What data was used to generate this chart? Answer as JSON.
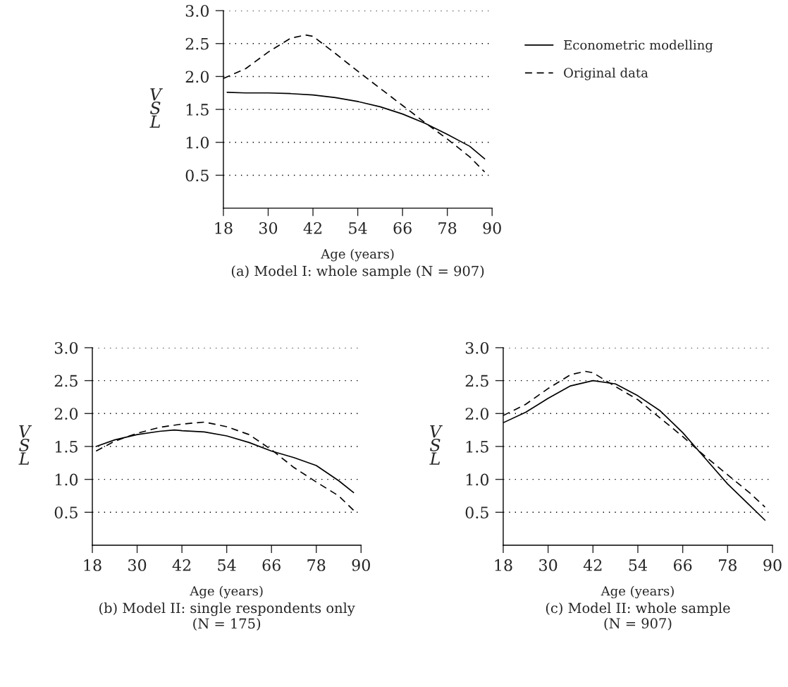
{
  "chart_data": [
    {
      "type": "line",
      "title": "(a) Model I: whole sample (N = 907)",
      "xlabel": "Age (years)",
      "ylabel": "V\nS\nL",
      "xlim": [
        18,
        90
      ],
      "xticks": [
        18,
        30,
        42,
        54,
        66,
        78,
        90
      ],
      "ylim": [
        0,
        3
      ],
      "yticks": [
        0.5,
        {
          "value": 1,
          "label": "1.0"
        },
        1.5,
        {
          "value": 2,
          "label": "2.0"
        },
        2.5,
        {
          "value": 3,
          "label": "3.0"
        }
      ],
      "grid": "y",
      "legend": "right",
      "series": [
        {
          "name": "Econometric modelling",
          "color": "#000000",
          "line_style": "solid",
          "x": [
            19,
            24,
            30,
            36,
            42,
            48,
            54,
            60,
            66,
            72,
            78,
            84,
            88
          ],
          "values": [
            1.76,
            1.75,
            1.75,
            1.74,
            1.72,
            1.68,
            1.62,
            1.54,
            1.43,
            1.29,
            1.12,
            0.94,
            0.75
          ]
        },
        {
          "name": "Original data",
          "color": "#000000",
          "line_style": "dashed",
          "x": [
            18,
            24,
            30,
            36,
            40,
            42,
            48,
            54,
            60,
            66,
            72,
            78,
            84,
            88
          ],
          "values": [
            1.97,
            2.12,
            2.37,
            2.58,
            2.63,
            2.61,
            2.35,
            2.08,
            1.82,
            1.56,
            1.3,
            1.05,
            0.78,
            0.55
          ]
        }
      ]
    },
    {
      "type": "line",
      "title": "(b) Model II: single respondents only\n(N = 175)",
      "xlabel": "Age (years)",
      "ylabel": "V\nS\nL",
      "xlim": [
        18,
        90
      ],
      "xticks": [
        18,
        30,
        42,
        54,
        66,
        78,
        90
      ],
      "ylim": [
        0,
        3
      ],
      "yticks": [
        0.5,
        {
          "value": 1,
          "label": "1.0"
        },
        1.5,
        {
          "value": 2,
          "label": "2.0"
        },
        2.5,
        {
          "value": 3,
          "label": "3.0"
        }
      ],
      "grid": "y",
      "series": [
        {
          "color": "#000000",
          "line_style": "solid",
          "x": [
            19,
            24,
            30,
            36,
            40,
            42,
            48,
            54,
            60,
            66,
            72,
            78,
            84,
            88
          ],
          "values": [
            1.5,
            1.6,
            1.68,
            1.73,
            1.75,
            1.74,
            1.72,
            1.66,
            1.56,
            1.43,
            1.33,
            1.21,
            0.98,
            0.8
          ]
        },
        {
          "color": "#000000",
          "line_style": "dashed",
          "x": [
            19,
            24,
            30,
            36,
            42,
            48,
            54,
            60,
            66,
            72,
            78,
            84,
            88
          ],
          "values": [
            1.43,
            1.58,
            1.7,
            1.79,
            1.84,
            1.87,
            1.8,
            1.68,
            1.45,
            1.18,
            0.96,
            0.75,
            0.53
          ]
        }
      ]
    },
    {
      "type": "line",
      "title": "(c) Model II: whole sample\n(N = 907)",
      "xlabel": "Age (years)",
      "ylabel": "V\nS\nL",
      "xlim": [
        18,
        90
      ],
      "xticks": [
        18,
        30,
        42,
        54,
        66,
        78,
        90
      ],
      "ylim": [
        0,
        3
      ],
      "yticks": [
        0.5,
        {
          "value": 1,
          "label": "1.0"
        },
        1.5,
        {
          "value": 2,
          "label": "2.0"
        },
        2.5,
        {
          "value": 3,
          "label": "3.0"
        }
      ],
      "grid": "y",
      "series": [
        {
          "color": "#000000",
          "line_style": "solid",
          "x": [
            18,
            24,
            30,
            36,
            42,
            48,
            54,
            60,
            66,
            72,
            78,
            84,
            88
          ],
          "values": [
            1.86,
            2.02,
            2.23,
            2.42,
            2.5,
            2.45,
            2.27,
            2.04,
            1.71,
            1.32,
            0.93,
            0.6,
            0.38
          ]
        },
        {
          "color": "#000000",
          "line_style": "dashed",
          "x": [
            18,
            24,
            30,
            36,
            40,
            42,
            48,
            54,
            60,
            66,
            72,
            78,
            84,
            88
          ],
          "values": [
            1.97,
            2.14,
            2.38,
            2.59,
            2.64,
            2.62,
            2.41,
            2.21,
            1.93,
            1.65,
            1.35,
            1.07,
            0.79,
            0.58
          ]
        }
      ]
    }
  ]
}
